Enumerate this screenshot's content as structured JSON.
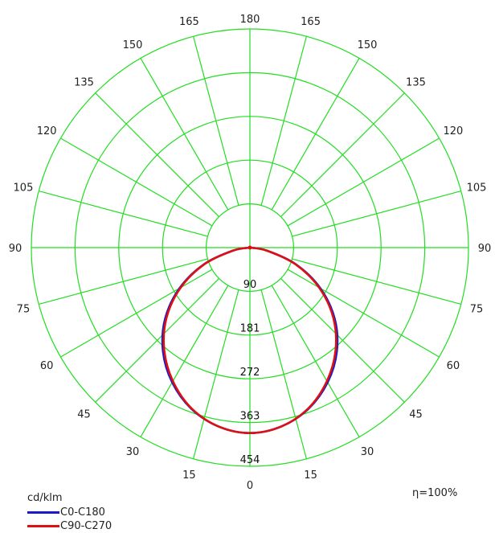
{
  "chart_data": {
    "type": "polar",
    "unit_label": "cd/klm",
    "efficiency_label": "η=100%",
    "angle_labels_left": [
      "0",
      "15",
      "30",
      "45",
      "60",
      "75",
      "90",
      "105",
      "120",
      "135",
      "150",
      "165",
      "180"
    ],
    "angle_labels_right": [
      "15",
      "30",
      "45",
      "60",
      "75",
      "90",
      "105",
      "120",
      "135",
      "150",
      "165"
    ],
    "radial_ticks": [
      90,
      181,
      272,
      363,
      454
    ],
    "rmax": 454,
    "grid_color": "#22dd22",
    "series": [
      {
        "name": "C0-C180",
        "color": "#1a1acc",
        "angles": [
          0,
          10,
          20,
          30,
          40,
          50,
          60,
          70,
          80,
          90
        ],
        "values": [
          385,
          377,
          356,
          323,
          281,
          230,
          169,
          102,
          36,
          0
        ]
      },
      {
        "name": "C90-C270",
        "color": "#dd1111",
        "angles": [
          0,
          10,
          20,
          30,
          40,
          50,
          60,
          70,
          80,
          90
        ],
        "values": [
          385,
          377,
          355,
          320,
          277,
          226,
          166,
          100,
          35,
          0
        ]
      }
    ]
  }
}
